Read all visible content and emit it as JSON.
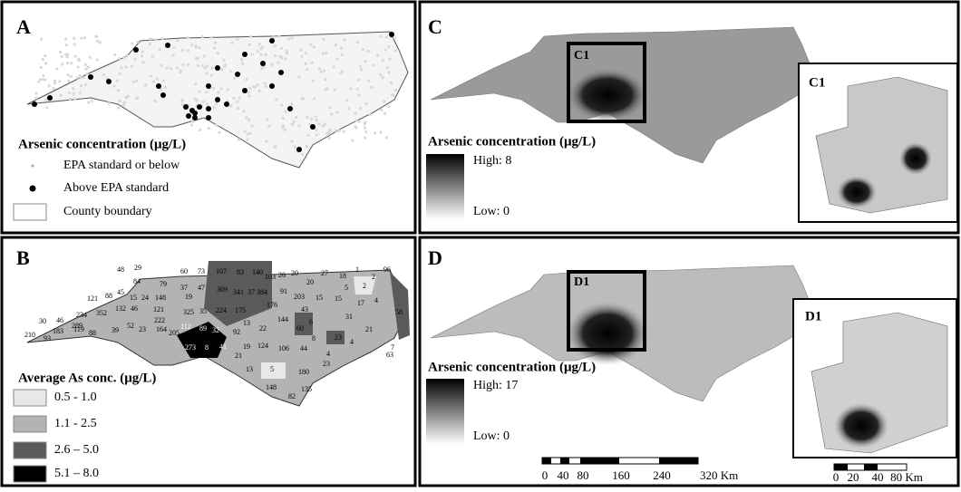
{
  "panels": {
    "A": {
      "label": "A",
      "legend_title": "Arsenic concentration (μg/L)",
      "legend": [
        "EPA standard or below",
        "Above EPA standard",
        "County boundary"
      ]
    },
    "B": {
      "label": "B",
      "legend_title": "Average As conc. (μg/L)",
      "legend": [
        "0.5 - 1.0",
        "1.1 - 2.5",
        "2.6 – 5.0",
        "5.1 – 8.0"
      ],
      "county_labels": [
        48,
        29,
        60,
        73,
        107,
        83,
        140,
        103,
        26,
        20,
        27,
        18,
        1,
        96,
        2,
        84,
        79,
        37,
        47,
        369,
        341,
        37,
        384,
        91,
        20,
        5,
        2,
        121,
        88,
        45,
        15,
        24,
        148,
        19,
        203,
        15,
        15,
        4,
        234,
        352,
        132,
        46,
        121,
        35,
        224,
        175,
        176,
        17,
        30,
        46,
        119,
        222,
        325,
        13,
        22,
        144,
        6,
        58,
        60,
        31,
        21,
        210,
        183,
        289,
        88,
        39,
        52,
        23,
        164,
        112,
        205,
        89,
        32,
        92,
        43,
        8,
        23,
        4,
        7,
        93,
        273,
        8,
        41,
        124,
        106,
        44,
        63,
        21,
        19,
        4,
        13,
        5,
        180,
        23,
        148,
        135,
        82
      ]
    },
    "C": {
      "label": "C",
      "box_label": "C1",
      "inset_label": "C1",
      "legend_title": "Arsenic concentration (μg/L)",
      "high": "High: 8",
      "low": "Low: 0"
    },
    "D": {
      "label": "D",
      "box_label": "D1",
      "inset_label": "D1",
      "legend_title": "Arsenic concentration (μg/L)",
      "high": "High: 17",
      "low": "Low: 0"
    }
  },
  "scale_bars": {
    "main": [
      "0",
      "40",
      "80",
      "160",
      "240",
      "320 Km"
    ],
    "inset": [
      "0",
      "20",
      "40",
      "80 Km"
    ]
  }
}
